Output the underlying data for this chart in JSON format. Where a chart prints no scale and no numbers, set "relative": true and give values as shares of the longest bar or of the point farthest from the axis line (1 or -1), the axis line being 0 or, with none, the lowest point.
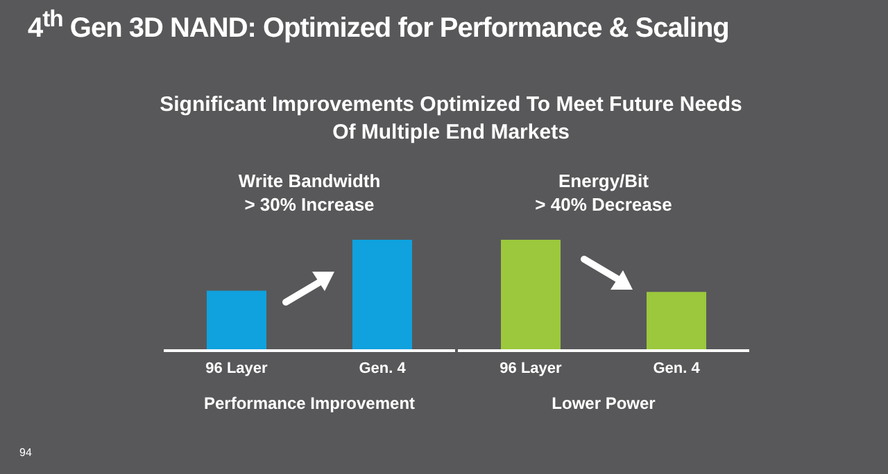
{
  "chart_data": [
    {
      "type": "bar",
      "title": "Write Bandwidth",
      "subtitle": "> 30% Increase",
      "xlabel": "Performance Improvement",
      "categories": [
        "96 Layer",
        "Gen. 4"
      ],
      "values": [
        0.54,
        1
      ],
      "color": "#0fa2df",
      "relative": true,
      "annotations": [
        "4$^{th}$ Gen 3D NAND: Optimized for Performance & Scaling",
        "Significant Improvements Optimized To Meet Future Needs Of Multiple End Markets",
        "94"
      ]
    },
    {
      "type": "bar",
      "title": "Energy/Bit",
      "subtitle": "> 40% Decrease",
      "xlabel": "Lower Power",
      "categories": [
        "96 Layer",
        "Gen. 4"
      ],
      "values": [
        1,
        0.53
      ],
      "color": "#9bc83d",
      "relative": true
    }
  ]
}
